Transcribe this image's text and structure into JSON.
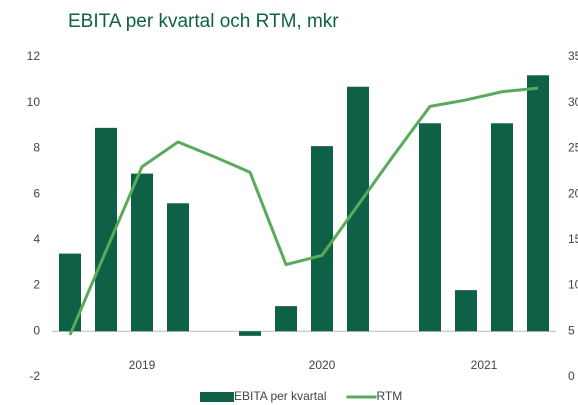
{
  "chart_data": {
    "type": "bar-line",
    "title": "EBITA per kvartal och RTM, mkr",
    "categories": [
      null,
      null,
      null,
      null,
      null,
      null,
      null,
      null,
      null,
      null,
      null,
      null,
      null,
      null
    ],
    "groups": [
      {
        "label": "2019",
        "span": 5
      },
      {
        "label": "2020",
        "span": 5
      },
      {
        "label": "2021",
        "span": 4
      }
    ],
    "series": [
      {
        "name": "EBITA per kvartal",
        "type": "bar",
        "axis": "y",
        "color": "#0e6147",
        "values": [
          3.4,
          8.9,
          6.9,
          5.6,
          null,
          -0.2,
          1.1,
          8.1,
          10.7,
          null,
          9.1,
          1.8,
          9.1,
          11.2
        ]
      },
      {
        "name": "RTM",
        "type": "line",
        "axis": "y2",
        "color": "#5aaa5a",
        "values": [
          4.6,
          13.8,
          23.0,
          25.7,
          24.1,
          22.4,
          12.3,
          13.3,
          18.8,
          24.3,
          29.6,
          30.3,
          31.2,
          31.6
        ]
      }
    ],
    "ylim": [
      -2,
      12
    ],
    "yticks": [
      -2,
      0,
      2,
      4,
      6,
      8,
      10,
      12
    ],
    "y2lim": [
      0,
      35
    ],
    "y2ticks": [
      0,
      5,
      10,
      15,
      20,
      25,
      30,
      35
    ],
    "legend": "bottom"
  }
}
